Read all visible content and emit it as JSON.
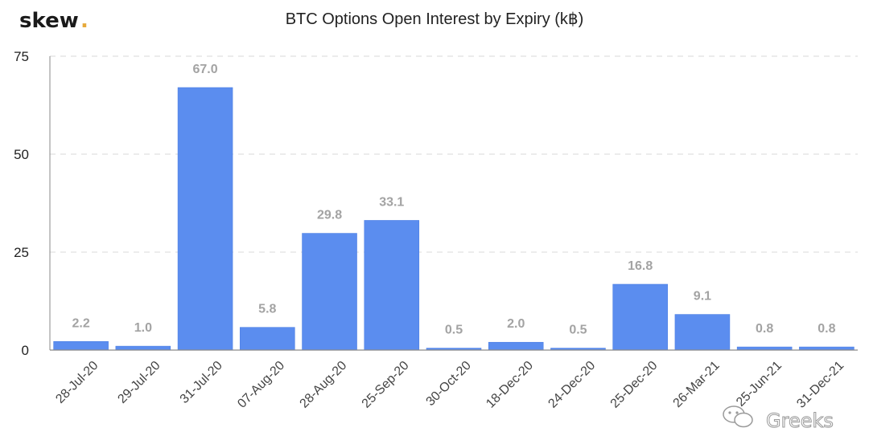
{
  "header": {
    "logo_text": "skew",
    "logo_dot": ".",
    "watermark": "Greeks"
  },
  "colors": {
    "bar": "#5b8def",
    "bar_shade": "#4d7fe3",
    "logo_dot": "#e6a93a",
    "grid": "#d8d8d8",
    "axis": "#8a8a8a"
  },
  "chart_data": {
    "type": "bar",
    "title": "BTC Options Open Interest by Expiry (k฿)",
    "xlabel": "",
    "ylabel": "",
    "categories": [
      "28-Jul-20",
      "29-Jul-20",
      "31-Jul-20",
      "07-Aug-20",
      "28-Aug-20",
      "25-Sep-20",
      "30-Oct-20",
      "18-Dec-20",
      "24-Dec-20",
      "25-Dec-20",
      "26-Mar-21",
      "25-Jun-21",
      "31-Dec-21"
    ],
    "values": [
      2.2,
      1.0,
      67.0,
      5.8,
      29.8,
      33.1,
      0.5,
      2.0,
      0.5,
      16.8,
      9.1,
      0.8,
      0.8
    ],
    "value_labels": [
      "2.2",
      "1.0",
      "67.0",
      "5.8",
      "29.8",
      "33.1",
      "0.5",
      "2.0",
      "0.5",
      "16.8",
      "9.1",
      "0.8",
      "0.8"
    ],
    "ylim": [
      0,
      75
    ],
    "yticks": [
      0,
      25,
      50,
      75
    ],
    "grid": true,
    "legend": "none"
  }
}
